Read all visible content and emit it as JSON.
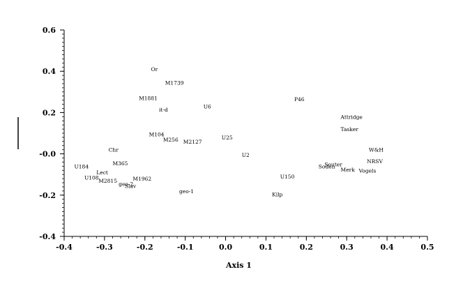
{
  "chart_data": {
    "type": "scatter",
    "xlabel": "Axis 1",
    "ylabel": "",
    "xlim": [
      -0.4,
      0.5
    ],
    "ylim": [
      -0.4,
      0.6
    ],
    "x_ticks": [
      "-0.4",
      "-0.3",
      "-0.2",
      "-0.1",
      "0.0",
      "0.1",
      "0.2",
      "0.3",
      "0.4",
      "0.5"
    ],
    "y_ticks": [
      "0.6",
      "0.4",
      "0.2",
      "-0.0",
      "-0.2",
      "-0.4"
    ],
    "y_tick_values": [
      0.6,
      0.4,
      0.2,
      0.0,
      -0.2,
      -0.4
    ],
    "x_tick_values": [
      -0.4,
      -0.3,
      -0.2,
      -0.1,
      0.0,
      0.1,
      0.2,
      0.3,
      0.4,
      0.5
    ],
    "grid": false,
    "points": [
      {
        "label": "Or",
        "x": -0.185,
        "y": 0.41
      },
      {
        "label": "M1739",
        "x": -0.15,
        "y": 0.345
      },
      {
        "label": "M1881",
        "x": -0.215,
        "y": 0.27
      },
      {
        "label": "it-d",
        "x": -0.165,
        "y": 0.215
      },
      {
        "label": "U6",
        "x": -0.055,
        "y": 0.23
      },
      {
        "label": "P46",
        "x": 0.17,
        "y": 0.265
      },
      {
        "label": "Attridge",
        "x": 0.285,
        "y": 0.18
      },
      {
        "label": "Tasker",
        "x": 0.285,
        "y": 0.12
      },
      {
        "label": "M104",
        "x": -0.19,
        "y": 0.095
      },
      {
        "label": "M256",
        "x": -0.155,
        "y": 0.07
      },
      {
        "label": "M2127",
        "x": -0.105,
        "y": 0.06
      },
      {
        "label": "U25",
        "x": -0.01,
        "y": 0.08
      },
      {
        "label": "W&H",
        "x": 0.355,
        "y": 0.02
      },
      {
        "label": "Chr",
        "x": -0.29,
        "y": 0.02
      },
      {
        "label": "U2",
        "x": 0.04,
        "y": -0.005
      },
      {
        "label": "NRSV",
        "x": 0.35,
        "y": -0.035
      },
      {
        "label": "M365",
        "x": -0.28,
        "y": -0.045
      },
      {
        "label": "Souter",
        "x": 0.245,
        "y": -0.05
      },
      {
        "label": "Soden",
        "x": 0.23,
        "y": -0.06
      },
      {
        "label": "U184",
        "x": -0.375,
        "y": -0.06
      },
      {
        "label": "Merk",
        "x": 0.285,
        "y": -0.075
      },
      {
        "label": "Vogels",
        "x": 0.33,
        "y": -0.08
      },
      {
        "label": "Lect",
        "x": -0.32,
        "y": -0.09
      },
      {
        "label": "U150",
        "x": 0.135,
        "y": -0.11
      },
      {
        "label": "M1962",
        "x": -0.23,
        "y": -0.12
      },
      {
        "label": "U108",
        "x": -0.35,
        "y": -0.115
      },
      {
        "label": "M2815",
        "x": -0.315,
        "y": -0.13
      },
      {
        "label": "geo-2",
        "x": -0.265,
        "y": -0.145
      },
      {
        "label": "Slav",
        "x": -0.25,
        "y": -0.155
      },
      {
        "label": "geo-1",
        "x": -0.115,
        "y": -0.18
      },
      {
        "label": "Kilp",
        "x": 0.115,
        "y": -0.195
      }
    ]
  }
}
